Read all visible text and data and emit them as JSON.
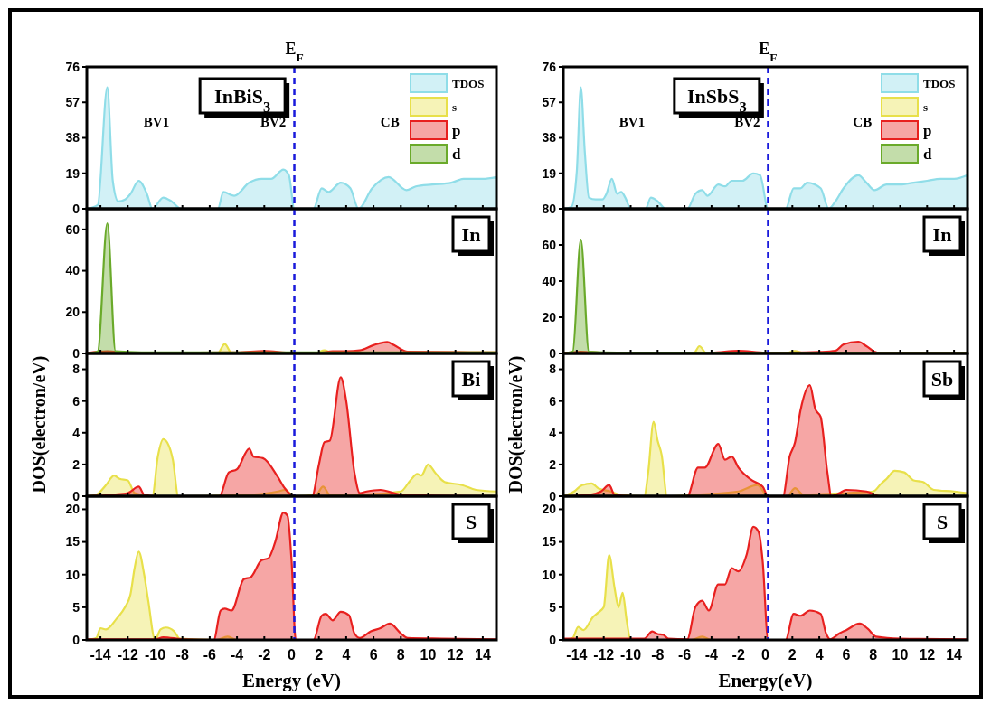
{
  "chart_data": [
    {
      "type": "area",
      "title": null,
      "annotations": [
        "InBiS$_{3}$",
        "BV1",
        "BV2",
        "CB"
      ],
      "ylim": [
        0,
        76
      ],
      "yticks": [
        0,
        19,
        38,
        57,
        76
      ],
      "xlim": [
        -15,
        15
      ],
      "xticks": [
        -14,
        -12,
        -10,
        -8,
        -6,
        -4,
        -2,
        0,
        2,
        4,
        6,
        8,
        10,
        12,
        14
      ],
      "tick_labels": "y",
      "legend": "top right",
      "ref_lines": [
        {
          "axis": "x",
          "value": 0.2,
          "label": "E$_{F}$",
          "color": "#1a1adb",
          "line_style": "dashed"
        }
      ],
      "series": [
        {
          "name": "TDOS",
          "color": "#8fdde8",
          "x": [
            -15,
            -14.2,
            -13.5,
            -13.1,
            -12.7,
            -12.2,
            -11.8,
            -11.2,
            -10.6,
            -10.2,
            -9.4,
            -8.8,
            -8.1,
            -5.4,
            -5.0,
            -4.2,
            -3.1,
            -2.2,
            -1.5,
            -0.6,
            -0.2,
            0.2,
            1.6,
            2.2,
            2.7,
            3.6,
            4.3,
            4.9,
            5.9,
            7.1,
            8.4,
            9.1,
            10.3,
            11.7,
            12.6,
            14,
            15
          ],
          "values": [
            0,
            2,
            65,
            15,
            4,
            5,
            8,
            15,
            8,
            0,
            6,
            4,
            0,
            0,
            9,
            7,
            14,
            16,
            16,
            21,
            18,
            0,
            0,
            11,
            9,
            14,
            11,
            0,
            11,
            17,
            10,
            12,
            13,
            14,
            16,
            16,
            17
          ]
        }
      ]
    },
    {
      "type": "area",
      "annotations": [
        "InSbS$_{3}$",
        "BV1",
        "BV2",
        "CB"
      ],
      "ylim": [
        0,
        76
      ],
      "yticks": [
        19,
        38,
        57,
        76
      ],
      "xlim": [
        -15,
        15
      ],
      "xticks": [
        -14,
        -12,
        -10,
        -8,
        -6,
        -4,
        -2,
        0,
        2,
        4,
        6,
        8,
        10,
        12,
        14
      ],
      "tick_labels": "y",
      "legend": "top right",
      "ref_lines": [
        {
          "axis": "x",
          "value": 0.2,
          "label": "E$_{F}$",
          "color": "#1a1adb",
          "line_style": "dashed"
        }
      ],
      "series": [
        {
          "name": "TDOS",
          "color": "#8fdde8",
          "x": [
            -15,
            -14.4,
            -14,
            -13.7,
            -13.4,
            -13.1,
            -12.6,
            -12.1,
            -11.8,
            -11.4,
            -11,
            -10.7,
            -10.4,
            -10,
            -8.9,
            -8.5,
            -8,
            -7.4,
            -5.8,
            -5.2,
            -4.7,
            -4.3,
            -3.5,
            -3,
            -2.5,
            -1.7,
            -0.9,
            -0.4,
            0.2,
            1.5,
            2.1,
            2.6,
            3.1,
            4.1,
            4.7,
            5.2,
            5.8,
            6.9,
            7.5,
            8.1,
            9,
            10,
            11,
            12,
            13,
            14,
            15
          ],
          "values": [
            0,
            1,
            20,
            65,
            30,
            6,
            5,
            5,
            8,
            16,
            8,
            9,
            6,
            0,
            0,
            6,
            4,
            0,
            0,
            8,
            10,
            7,
            13,
            12,
            15,
            15,
            19,
            18,
            0,
            0,
            11,
            11,
            14,
            11,
            0,
            4,
            11,
            18,
            14,
            10,
            13,
            13,
            14,
            15,
            16,
            16,
            18
          ]
        }
      ]
    },
    {
      "type": "area",
      "annotations": [
        "In"
      ],
      "legend": "top right",
      "ylabel": "DOS(electron/eV)",
      "ylim": [
        0,
        70
      ],
      "yticks": [
        0,
        20,
        40,
        60
      ],
      "xlim": [
        -15,
        15
      ],
      "xticks": [
        -14,
        -12,
        -10,
        -8,
        -6,
        -4,
        -2,
        0,
        2,
        4,
        6,
        8,
        10,
        12,
        14
      ],
      "tick_labels": "y",
      "ref_lines": [
        {
          "axis": "x",
          "value": 0.2,
          "color": "#1a1adb",
          "line_style": "dashed"
        }
      ],
      "series": [
        {
          "name": "s",
          "color": "#e8e04a",
          "x": [
            -15,
            -5.4,
            -4.9,
            -4.4,
            1.8,
            2.4,
            3,
            15
          ],
          "values": [
            0.3,
            0.3,
            4.5,
            0.3,
            0.3,
            1.5,
            0.3,
            0.5
          ]
        },
        {
          "name": "p",
          "color": "#e8201f",
          "x": [
            -15,
            -13.5,
            -12,
            -4,
            -2,
            0,
            2,
            3,
            4,
            5,
            6,
            7,
            7.5,
            8.5,
            15
          ],
          "values": [
            0.2,
            1,
            0.3,
            0.5,
            1.2,
            0.3,
            0.3,
            1,
            1,
            1.5,
            4,
            5.5,
            4,
            0.8,
            0.5
          ]
        },
        {
          "name": "d",
          "color": "#6aaa2a",
          "x": [
            -15,
            -14.2,
            -13.5,
            -12.9,
            -11,
            15
          ],
          "values": [
            0,
            1,
            63,
            1,
            0.5,
            0.5
          ]
        }
      ]
    },
    {
      "type": "area",
      "annotations": [
        "In"
      ],
      "legend": "top right",
      "ylabel": "DOS(electron/eV)",
      "ylim": [
        0,
        80
      ],
      "yticks": [
        0,
        20,
        40,
        60,
        80
      ],
      "xlim": [
        -15,
        15
      ],
      "xticks": [
        -14,
        -12,
        -10,
        -8,
        -6,
        -4,
        -2,
        0,
        2,
        4,
        6,
        8,
        10,
        12,
        14
      ],
      "tick_labels": "y",
      "ref_lines": [
        {
          "axis": "x",
          "value": 0.2,
          "color": "#1a1adb",
          "line_style": "dashed"
        }
      ],
      "series": [
        {
          "name": "s",
          "color": "#e8e04a",
          "x": [
            -15,
            -5.3,
            -4.9,
            -4.4,
            1.6,
            2.2,
            2.8,
            15
          ],
          "values": [
            0.3,
            0.3,
            4,
            0.3,
            0.3,
            1.3,
            0.3,
            0.3
          ]
        },
        {
          "name": "p",
          "color": "#e8201f",
          "x": [
            -15,
            -13.7,
            -12,
            -4,
            -2,
            0,
            2,
            4,
            5.2,
            5.8,
            6.9,
            7.5,
            8.3,
            15
          ],
          "values": [
            0.2,
            1,
            0.3,
            0.5,
            1.5,
            0.4,
            0.4,
            0.8,
            1.5,
            5,
            6.5,
            4,
            0.5,
            0.5
          ]
        },
        {
          "name": "d",
          "color": "#6aaa2a",
          "x": [
            -15,
            -14.3,
            -13.7,
            -13.1,
            -11,
            15
          ],
          "values": [
            0,
            1,
            63,
            1,
            0.5,
            0.3
          ]
        }
      ]
    },
    {
      "type": "area",
      "annotations": [
        "Bi"
      ],
      "ylim": [
        0,
        9
      ],
      "yticks": [
        0,
        2,
        4,
        6,
        8
      ],
      "xlim": [
        -15,
        15
      ],
      "xticks": [
        -14,
        -12,
        -10,
        -8,
        -6,
        -4,
        -2,
        0,
        2,
        4,
        6,
        8,
        10,
        12,
        14
      ],
      "tick_labels": "y",
      "ref_lines": [
        {
          "axis": "x",
          "value": 0.2,
          "color": "#1a1adb",
          "line_style": "dashed"
        }
      ],
      "series": [
        {
          "color": "#e8e04a",
          "x": [
            -15,
            -14.3,
            -13.6,
            -13,
            -12.6,
            -12,
            -11.5,
            -10.2,
            -9.8,
            -9.4,
            -9,
            -8.7,
            -8.3,
            -3,
            -1,
            -0.5,
            0.2,
            1.8,
            2.3,
            2.8,
            5,
            8,
            8.7,
            9.2,
            9.5,
            10,
            10.5,
            11.2,
            12.5,
            13.5,
            15
          ],
          "values": [
            0,
            0.1,
            0.7,
            1.3,
            1.1,
            1,
            0.2,
            0,
            2.5,
            3.6,
            3.2,
            2.3,
            0,
            0.1,
            0.3,
            0.4,
            0,
            0.1,
            0.6,
            0.1,
            0.1,
            0.3,
            1,
            1.4,
            1.3,
            2,
            1.5,
            0.9,
            0.7,
            0.4,
            0.3
          ]
        },
        {
          "color": "#e8201f",
          "x": [
            -15,
            -13,
            -12,
            -11.2,
            -10.8,
            -10,
            -5.3,
            -4.6,
            -4,
            -3.1,
            -2.8,
            -2.1,
            -1,
            -0.5,
            0.2,
            1.5,
            2,
            2.4,
            2.8,
            3.6,
            4,
            4.6,
            5,
            5.5,
            6.5,
            8,
            15
          ],
          "values": [
            0,
            0.1,
            0.2,
            0.6,
            0.1,
            0,
            0,
            1.5,
            1.7,
            3,
            2.5,
            2.4,
            1.2,
            0.5,
            0,
            0,
            2,
            3.4,
            3.5,
            7.5,
            6,
            1.5,
            0.2,
            0.3,
            0.4,
            0.1,
            0
          ]
        }
      ]
    },
    {
      "type": "area",
      "annotations": [
        "Sb"
      ],
      "ylim": [
        0,
        9
      ],
      "yticks": [
        0,
        2,
        4,
        6,
        8
      ],
      "xlim": [
        -15,
        15
      ],
      "xticks": [
        -14,
        -12,
        -10,
        -8,
        -6,
        -4,
        -2,
        0,
        2,
        4,
        6,
        8,
        10,
        12,
        14
      ],
      "tick_labels": "y",
      "ref_lines": [
        {
          "axis": "x",
          "value": 0.2,
          "color": "#1a1adb",
          "line_style": "dashed"
        }
      ],
      "series": [
        {
          "color": "#e8e04a",
          "x": [
            -15,
            -14.2,
            -13.6,
            -12.9,
            -12.4,
            -11.5,
            -10.8,
            -9,
            -8.7,
            -8.3,
            -8,
            -7.7,
            -7.3,
            -5,
            -2,
            -0.6,
            0.2,
            1.6,
            2.2,
            2.8,
            6,
            8,
            8.6,
            9,
            9.6,
            10.3,
            11,
            11.7,
            12.5,
            14,
            15
          ],
          "values": [
            0,
            0.3,
            0.7,
            0.8,
            0.5,
            0.3,
            0.1,
            0,
            1.5,
            4.7,
            3.5,
            2.6,
            0,
            0.1,
            0.3,
            0.7,
            0,
            0,
            0.5,
            0.1,
            0.2,
            0.3,
            0.8,
            1.1,
            1.6,
            1.5,
            1,
            0.9,
            0.4,
            0.3,
            0.2
          ]
        },
        {
          "color": "#e8201f",
          "x": [
            -15,
            -13,
            -12.2,
            -11.6,
            -11.2,
            -10,
            -5.8,
            -5,
            -4.5,
            -3.5,
            -3,
            -2.5,
            -2,
            -1,
            -0.2,
            0.2,
            1.3,
            1.8,
            2.2,
            2.6,
            3.3,
            3.7,
            4.1,
            4.6,
            4.9,
            5.5,
            6,
            7.5,
            8.5,
            15
          ],
          "values": [
            0,
            0.1,
            0.3,
            0.7,
            0.1,
            0,
            0,
            1.8,
            1.8,
            3.3,
            2.3,
            2.5,
            1.8,
            1,
            0.6,
            0,
            0,
            2.5,
            3.4,
            5.4,
            7,
            5.5,
            5,
            1.5,
            0,
            0.2,
            0.4,
            0.3,
            0,
            0
          ]
        }
      ]
    },
    {
      "type": "area",
      "annotations": [
        "S"
      ],
      "xlabel": "Energy (eV)",
      "ylim": [
        0,
        22
      ],
      "yticks": [
        0,
        5,
        10,
        15,
        20
      ],
      "xlim": [
        -15,
        15
      ],
      "xticks": [
        -14,
        -12,
        -10,
        -8,
        -6,
        -4,
        -2,
        0,
        2,
        4,
        6,
        8,
        10,
        12,
        14
      ],
      "ref_lines": [
        {
          "axis": "x",
          "value": 0.2,
          "color": "#1a1adb",
          "line_style": "dashed"
        }
      ],
      "series": [
        {
          "color": "#e8e04a",
          "x": [
            -15,
            -14.3,
            -14,
            -13.6,
            -12.8,
            -12.2,
            -11.8,
            -11.5,
            -11.2,
            -10.8,
            -10.5,
            -10,
            -9.6,
            -9.2,
            -8.6,
            -8.2,
            -5.5,
            -4.7,
            -4,
            15
          ],
          "values": [
            0,
            0.3,
            1.8,
            1.6,
            3.3,
            5,
            7,
            11,
            13.5,
            10,
            6,
            0,
            1.6,
            1.9,
            1.3,
            0.2,
            0,
            0.5,
            0,
            0
          ]
        },
        {
          "color": "#e8201f",
          "x": [
            -15,
            -10,
            -9.4,
            -8,
            -5.7,
            -5.2,
            -4.9,
            -4.4,
            -3.5,
            -3,
            -2.2,
            -1.7,
            -1.2,
            -0.6,
            -0.3,
            0,
            0.3,
            1.6,
            2.2,
            2.5,
            3,
            3.6,
            4.2,
            4.6,
            5,
            5.8,
            6.5,
            7.2,
            8,
            8.5,
            11,
            15
          ],
          "values": [
            0.1,
            0.1,
            0.4,
            0.1,
            0,
            4.5,
            4.8,
            4.5,
            9.3,
            9.6,
            12.2,
            12.5,
            15,
            19.5,
            19,
            12,
            0,
            0,
            3.7,
            4,
            3,
            4.3,
            3.8,
            1,
            0.3,
            1.3,
            1.8,
            2.5,
            1,
            0.3,
            0.2,
            0.1
          ]
        }
      ]
    },
    {
      "type": "area",
      "annotations": [
        "S"
      ],
      "xlabel": "Energy(eV)",
      "ylim": [
        0,
        22
      ],
      "yticks": [
        0,
        5,
        10,
        15,
        20
      ],
      "xlim": [
        -15,
        15
      ],
      "xticks": [
        -14,
        -12,
        -10,
        -8,
        -6,
        -4,
        -2,
        0,
        2,
        4,
        6,
        8,
        10,
        12,
        14
      ],
      "ref_lines": [
        {
          "axis": "x",
          "value": 0.2,
          "color": "#1a1adb",
          "line_style": "dashed"
        }
      ],
      "series": [
        {
          "color": "#e8e04a",
          "x": [
            -15,
            -14.3,
            -13.9,
            -13.5,
            -12.8,
            -12.4,
            -12,
            -11.6,
            -11.2,
            -10.9,
            -10.6,
            -10.3,
            -10,
            -5.5,
            -4.7,
            -4,
            15
          ],
          "values": [
            0,
            0.3,
            2,
            1.5,
            3.5,
            4.2,
            5,
            13,
            8,
            5,
            7.2,
            3,
            0,
            0,
            0.5,
            0,
            0
          ]
        },
        {
          "color": "#e8201f",
          "x": [
            -15,
            -9,
            -8.4,
            -8,
            -7.6,
            -7.2,
            -5.8,
            -5.2,
            -4.7,
            -4.2,
            -3.5,
            -3,
            -2.5,
            -2,
            -1.4,
            -0.9,
            -0.5,
            -0.2,
            0.2,
            1.5,
            2.1,
            2.6,
            3.3,
            4.1,
            4.5,
            4.8,
            5.5,
            6,
            7,
            7.6,
            8.2,
            10,
            15
          ],
          "values": [
            0.2,
            0.2,
            1.3,
            0.9,
            0.8,
            0.2,
            0.1,
            5,
            6,
            4.5,
            8.5,
            8.5,
            11,
            10.5,
            13,
            17.3,
            16.5,
            12,
            0,
            0,
            4,
            3.7,
            4.5,
            4,
            1,
            0.1,
            1,
            1.5,
            2.5,
            1.7,
            0.5,
            0.2,
            0.1
          ]
        }
      ]
    }
  ]
}
